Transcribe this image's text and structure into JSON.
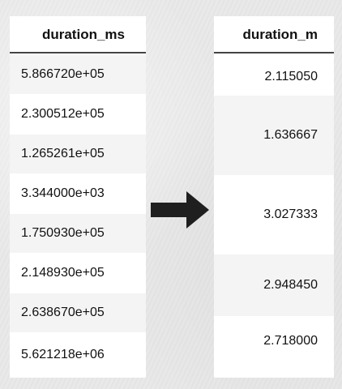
{
  "left_table": {
    "header": "duration_ms",
    "rows": [
      "5.866720e+05",
      "2.300512e+05",
      "1.265261e+05",
      "3.344000e+03",
      "1.750930e+05",
      "2.148930e+05",
      "2.638670e+05",
      "5.621218e+06"
    ]
  },
  "right_table": {
    "header": "duration_m",
    "rows": [
      "2.115050",
      "1.636667",
      "3.027333",
      "2.948450",
      "2.718000"
    ]
  },
  "arrow": {
    "icon": "right-arrow-icon",
    "color": "#1f1f1f"
  }
}
